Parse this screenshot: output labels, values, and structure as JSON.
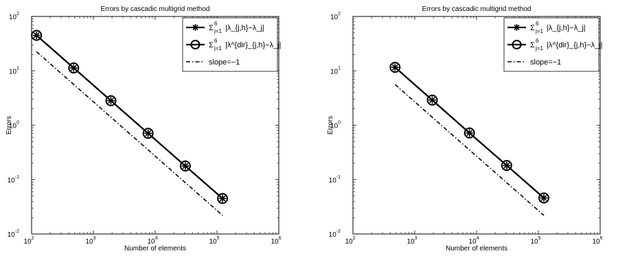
{
  "chart_data": [
    {
      "type": "line",
      "title": "Errors by cascadic multigrid method",
      "xlabel": "Number of elements",
      "ylabel": "Errors",
      "xscale": "log",
      "yscale": "log",
      "xlim": [
        100,
        1000000
      ],
      "ylim": [
        0.01,
        100
      ],
      "x_ticks": [
        "10^2",
        "10^3",
        "10^4",
        "10^5",
        "10^6"
      ],
      "y_ticks": [
        "10^-2",
        "10^-1",
        "10^0",
        "10^1",
        "10^2"
      ],
      "grid": false,
      "legend_position": "top-right",
      "x": [
        120,
        480,
        1920,
        7680,
        30720,
        122880
      ],
      "series": [
        {
          "name": "Σ_{j=1}^{6} |λ_{j,h} − λ_j|",
          "legend_main": "Σ",
          "legend_sup": "6",
          "legend_sub": "j=1",
          "legend_body": "|λ_{j,h}−λ_j|",
          "marker": "star",
          "values": [
            45,
            11.3,
            2.83,
            0.71,
            0.178,
            0.045
          ]
        },
        {
          "name": "Σ_{j=1}^{6} |λ^{dir}_{j,h} − λ_j|",
          "legend_main": "Σ",
          "legend_sup": "6",
          "legend_sub": "j=1",
          "legend_body": "|λ^{dir}_{j,h}−λ_j|",
          "marker": "circle",
          "values": [
            45,
            11.3,
            2.83,
            0.71,
            0.178,
            0.045
          ]
        },
        {
          "name": "slope=−1",
          "marker": "none",
          "linestyle": "dashdot",
          "x": [
            120,
            122880
          ],
          "values": [
            22.5,
            0.022
          ]
        }
      ]
    },
    {
      "type": "line",
      "title": "Errors by cascadic multigrid method",
      "xlabel": "Number of elements",
      "ylabel": "Errors",
      "xscale": "log",
      "yscale": "log",
      "xlim": [
        100,
        1000000
      ],
      "ylim": [
        0.01,
        100
      ],
      "x_ticks": [
        "10^2",
        "10^3",
        "10^4",
        "10^5",
        "10^6"
      ],
      "y_ticks": [
        "10^-2",
        "10^-1",
        "10^0",
        "10^1",
        "10^2"
      ],
      "grid": false,
      "legend_position": "top-right",
      "x": [
        480,
        1920,
        7680,
        30720,
        122880
      ],
      "series": [
        {
          "name": "Σ_{j=1}^{6} |λ_{j,h} − λ_j|",
          "legend_main": "Σ",
          "legend_sup": "6",
          "legend_sub": "j=1",
          "legend_body": "|λ_{j,h}−λ_j|",
          "marker": "star",
          "values": [
            11.6,
            2.9,
            0.72,
            0.182,
            0.046
          ]
        },
        {
          "name": "Σ_{j=1}^{6} |λ^{dir}_{j,h} − λ_j|",
          "legend_main": "Σ",
          "legend_sup": "6",
          "legend_sub": "j=1",
          "legend_body": "|λ^{dir}_{j,h}−λ_j|",
          "marker": "circle",
          "values": [
            11.6,
            2.9,
            0.72,
            0.182,
            0.046
          ]
        },
        {
          "name": "slope=−1",
          "marker": "none",
          "linestyle": "dashdot",
          "x": [
            480,
            122880
          ],
          "values": [
            5.6,
            0.022
          ]
        }
      ]
    }
  ]
}
